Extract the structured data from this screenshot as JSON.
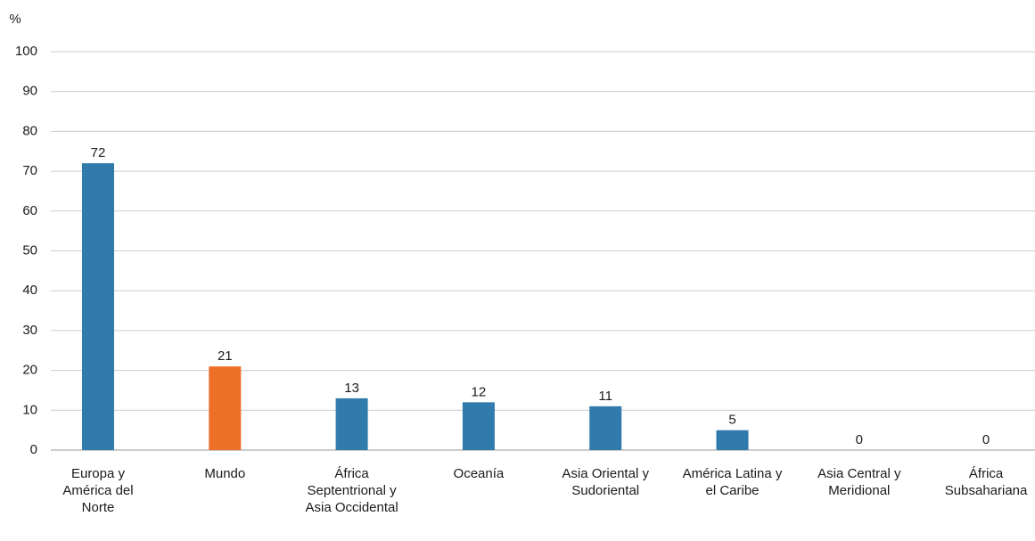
{
  "chart_data": {
    "type": "bar",
    "unit_label": "%",
    "categories": [
      "Europa y América del Norte",
      "Mundo",
      "África Septentrional y Asia Occidental",
      "Oceanía",
      "Asia Oriental y Sudoriental",
      "América Latina y el Caribe",
      "Asia Central y Meridional",
      "África Subsahariana"
    ],
    "values": [
      72,
      21,
      13,
      12,
      11,
      5,
      0,
      0
    ],
    "colors": [
      "#317bac",
      "#ee6f27",
      "#317bac",
      "#317bac",
      "#317bac",
      "#317bac",
      "#317bac",
      "#317bac"
    ],
    "ylim": [
      0,
      100
    ],
    "yticks": [
      0,
      10,
      20,
      30,
      40,
      50,
      60,
      70,
      80,
      90,
      100
    ],
    "grid": true
  }
}
